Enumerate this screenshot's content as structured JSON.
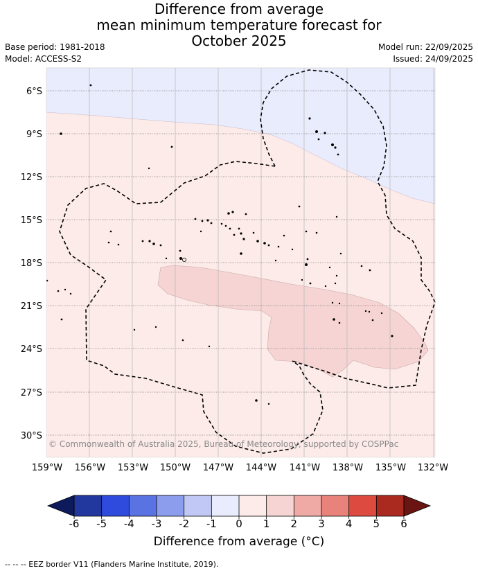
{
  "title_lines": [
    "Difference from average",
    "mean minimum temperature forecast for",
    "October 2025"
  ],
  "meta": {
    "base_period": "Base period: 1981-2018",
    "model": "Model: ACCESS-S2",
    "model_run": "Model run: 22/09/2025",
    "issued": "Issued: 24/09/2025"
  },
  "map": {
    "lat_labels": [
      "6°S",
      "9°S",
      "12°S",
      "15°S",
      "18°S",
      "21°S",
      "24°S",
      "27°S",
      "30°S"
    ],
    "lon_labels": [
      "159°W",
      "156°W",
      "153°W",
      "150°W",
      "147°W",
      "144°W",
      "141°W",
      "138°W",
      "135°W",
      "132°W"
    ],
    "copyright": "© Commonwealth of Australia 2025, Bureau of Meteorology, supported by COSPPac",
    "fill_colors": {
      "cool_-1_0": "#e9ecfc",
      "warm_0_1": "#fcebe9",
      "warm_1_2": "#f5d4d3"
    }
  },
  "colorbar": {
    "ticks": [
      "-6",
      "-5",
      "-4",
      "-3",
      "-2",
      "-1",
      "0",
      "1",
      "2",
      "3",
      "4",
      "5",
      "6"
    ],
    "colors": [
      "#23389f",
      "#2e4bde",
      "#5a73e3",
      "#8c9ded",
      "#c1c8f5",
      "#e9ecfc",
      "#fcebe9",
      "#f5d4d3",
      "#efaaa5",
      "#e8827a",
      "#dc4a40",
      "#ab2a20"
    ],
    "under_color": "#0d1a5c",
    "over_color": "#6b1512",
    "label": "Difference from average (°C)"
  },
  "footnote": "--  --  -- EEZ border V11 (Flanders Marine Institute, 2019)."
}
